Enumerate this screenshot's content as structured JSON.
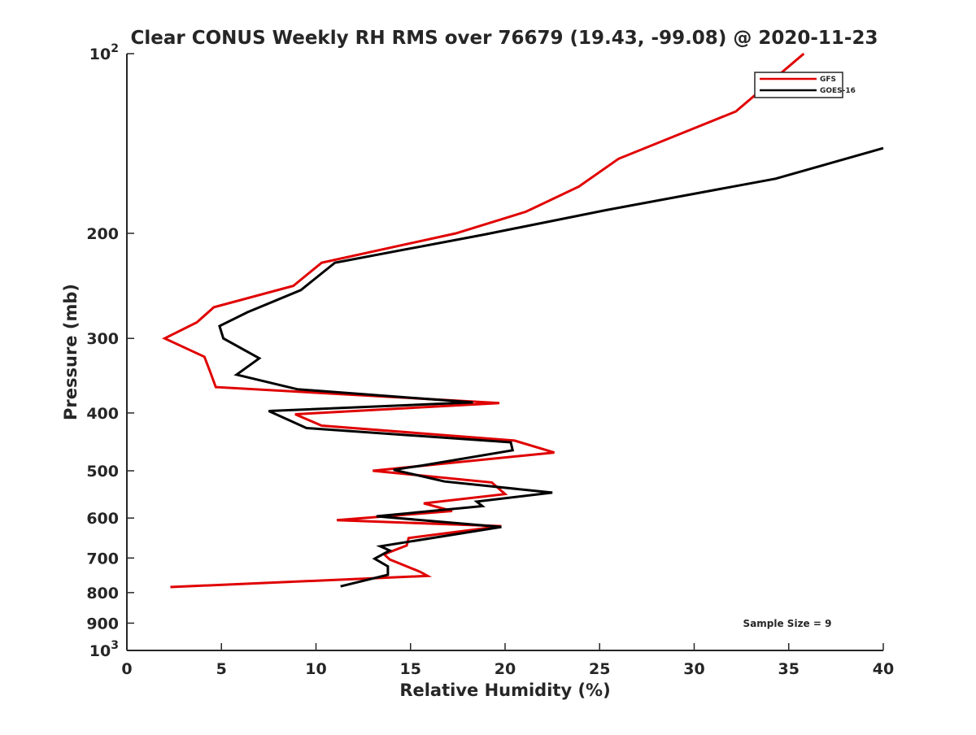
{
  "chart_data": {
    "type": "line",
    "title": "Clear CONUS Weekly RH RMS over 76679 (19.43, -99.08) @ 2020-11-23",
    "xlabel": "Relative Humidity (%)",
    "ylabel": "Pressure (mb)",
    "xlim": [
      0,
      40
    ],
    "ylim": [
      100,
      1000
    ],
    "yscale": "log",
    "y_reversed": true,
    "grid": false,
    "legend_position": "top-right",
    "x_ticks": [
      0,
      5,
      10,
      15,
      20,
      25,
      30,
      35,
      40
    ],
    "y_ticks": [
      {
        "value": 100,
        "label": "10",
        "sup": "2"
      },
      {
        "value": 200,
        "label": "200",
        "sup": ""
      },
      {
        "value": 300,
        "label": "300",
        "sup": ""
      },
      {
        "value": 400,
        "label": "400",
        "sup": ""
      },
      {
        "value": 500,
        "label": "500",
        "sup": ""
      },
      {
        "value": 600,
        "label": "600",
        "sup": ""
      },
      {
        "value": 700,
        "label": "700",
        "sup": ""
      },
      {
        "value": 800,
        "label": "800",
        "sup": ""
      },
      {
        "value": 900,
        "label": "900",
        "sup": ""
      },
      {
        "value": 1000,
        "label": "10",
        "sup": "3"
      }
    ],
    "annotation": "Sample Size = 9",
    "series": [
      {
        "name": "GFS",
        "color": "#e00000",
        "points": [
          [
            35.8,
            100
          ],
          [
            32.2,
            125
          ],
          [
            26.0,
            150
          ],
          [
            23.9,
            167
          ],
          [
            21.1,
            184
          ],
          [
            17.4,
            200
          ],
          [
            10.3,
            224
          ],
          [
            8.8,
            245
          ],
          [
            4.6,
            266
          ],
          [
            3.7,
            282
          ],
          [
            2.0,
            300
          ],
          [
            4.1,
            322
          ],
          [
            4.4,
            341
          ],
          [
            4.7,
            362
          ],
          [
            19.7,
            385
          ],
          [
            8.9,
            402
          ],
          [
            10.3,
            420
          ],
          [
            20.5,
            445
          ],
          [
            22.6,
            466
          ],
          [
            13.0,
            500
          ],
          [
            19.3,
            523
          ],
          [
            20.0,
            547
          ],
          [
            15.7,
            567
          ],
          [
            17.2,
            584
          ],
          [
            11.1,
            605
          ],
          [
            19.8,
            619
          ],
          [
            14.9,
            648
          ],
          [
            14.8,
            667
          ],
          [
            13.6,
            690
          ],
          [
            13.9,
            704
          ],
          [
            15.5,
            738
          ],
          [
            15.9,
            750
          ],
          [
            2.3,
            783
          ]
        ]
      },
      {
        "name": "GOES-16",
        "color": "#000000",
        "points": [
          [
            40.0,
            144
          ],
          [
            34.3,
            162
          ],
          [
            25.3,
            183
          ],
          [
            18.9,
            201
          ],
          [
            11.0,
            224
          ],
          [
            9.2,
            249
          ],
          [
            6.4,
            271
          ],
          [
            4.9,
            286
          ],
          [
            5.1,
            300
          ],
          [
            7.0,
            324
          ],
          [
            5.8,
            345
          ],
          [
            9.0,
            365
          ],
          [
            18.3,
            384
          ],
          [
            7.5,
            397
          ],
          [
            9.5,
            424
          ],
          [
            20.3,
            448
          ],
          [
            20.4,
            462
          ],
          [
            15.6,
            490
          ],
          [
            14.1,
            498
          ],
          [
            16.8,
            521
          ],
          [
            22.5,
            544
          ],
          [
            18.5,
            563
          ],
          [
            18.8,
            573
          ],
          [
            13.2,
            596
          ],
          [
            19.8,
            621
          ],
          [
            13.4,
            669
          ],
          [
            13.9,
            680
          ],
          [
            13.1,
            702
          ],
          [
            13.8,
            723
          ],
          [
            13.8,
            747
          ],
          [
            11.3,
            781
          ]
        ]
      }
    ]
  }
}
